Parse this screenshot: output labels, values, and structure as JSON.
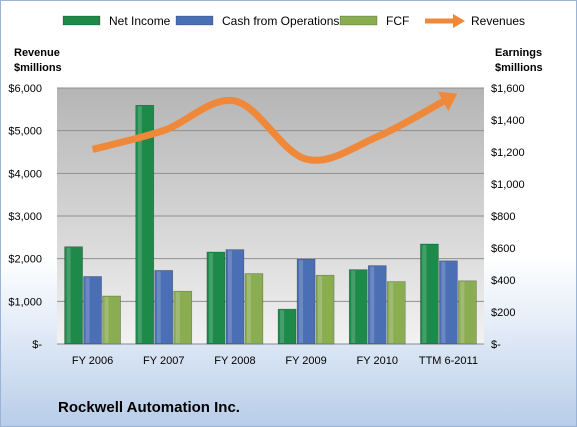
{
  "company": "Rockwell Automation Inc.",
  "chart_data": {
    "type": "bar",
    "categories": [
      "FY 2006",
      "FY 2007",
      "FY 2008",
      "FY 2009",
      "FY 2010",
      "TTM 6-2011"
    ],
    "left_axis": {
      "label_line1": "Revenue",
      "label_line2": "$millions",
      "min": 0,
      "max": 6000,
      "ticks": [
        0,
        1000,
        2000,
        3000,
        4000,
        5000,
        6000
      ],
      "tick_labels": [
        "$-",
        "$1,000",
        "$2,000",
        "$3,000",
        "$4,000",
        "$5,000",
        "$6,000"
      ]
    },
    "right_axis": {
      "label_line1": "Earnings",
      "label_line2": "$millions",
      "min": 0,
      "max": 1600,
      "ticks": [
        0,
        200,
        400,
        600,
        800,
        1000,
        1200,
        1400,
        1600
      ],
      "tick_labels": [
        "$-",
        "$200",
        "$400",
        "$600",
        "$800",
        "$1,000",
        "$1,200",
        "$1,400",
        "$1,600"
      ]
    },
    "series": [
      {
        "name": "Net Income",
        "type": "bar",
        "axis": "right",
        "color": "#1e8a4a",
        "values": [
          608,
          1492,
          575,
          218,
          465,
          625
        ]
      },
      {
        "name": "Cash from Operations",
        "type": "bar",
        "axis": "right",
        "color": "#4a6fb5",
        "values": [
          422,
          460,
          590,
          530,
          490,
          520
        ]
      },
      {
        "name": "FCF",
        "type": "bar",
        "axis": "right",
        "color": "#8aad52",
        "values": [
          300,
          330,
          440,
          430,
          390,
          395
        ]
      },
      {
        "name": "Revenues",
        "type": "line",
        "axis": "left",
        "color": "#f0883a",
        "values": [
          4561,
          5004,
          5698,
          4333,
          4857,
          5755
        ]
      }
    ],
    "grid": true,
    "legend_position": "top"
  }
}
